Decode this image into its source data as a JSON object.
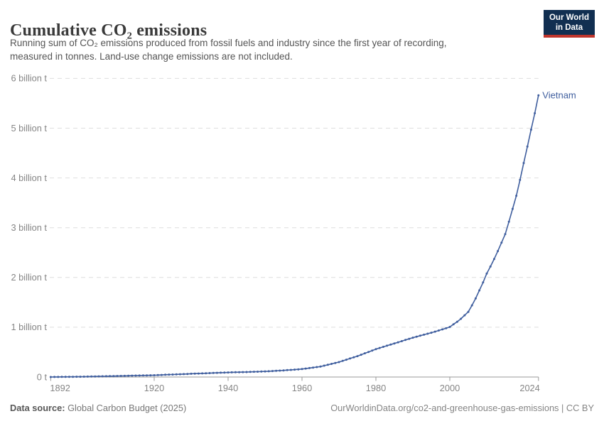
{
  "header": {
    "title": "Cumulative CO₂ emissions",
    "subtitle_line1": "Running sum of CO₂ emissions produced from fossil fuels and industry since the first year of recording,",
    "subtitle_line2": "measured in tonnes. Land-use change emissions are not included.",
    "logo_line1": "Our World",
    "logo_line2": "in Data"
  },
  "chart_data": {
    "type": "line",
    "title": "Cumulative CO₂ emissions",
    "entity_label": "Vietnam",
    "line_color": "#3f5e9e",
    "grid_color": "#dedede",
    "axis_color": "#999999",
    "grid": "horizontal-dashed",
    "legend_position": "end-of-line",
    "xlabel": "",
    "ylabel": "tonnes",
    "xlim": [
      1892,
      2024
    ],
    "ylim": [
      0,
      6
    ],
    "x_ticks": [
      {
        "year": 1892,
        "label": "1892"
      },
      {
        "year": 1920,
        "label": "1920"
      },
      {
        "year": 1940,
        "label": "1940"
      },
      {
        "year": 1960,
        "label": "1960"
      },
      {
        "year": 1980,
        "label": "1980"
      },
      {
        "year": 2000,
        "label": "2000"
      },
      {
        "year": 2024,
        "label": "2024"
      }
    ],
    "y_ticks": [
      {
        "value": 0,
        "label": "0 t"
      },
      {
        "value": 1,
        "label": "1 billion t"
      },
      {
        "value": 2,
        "label": "2 billion t"
      },
      {
        "value": 3,
        "label": "3 billion t"
      },
      {
        "value": 4,
        "label": "4 billion t"
      },
      {
        "value": 5,
        "label": "5 billion t"
      },
      {
        "value": 6,
        "label": "6 billion t"
      }
    ],
    "x": [
      1892,
      1893,
      1894,
      1895,
      1896,
      1897,
      1898,
      1899,
      1900,
      1901,
      1902,
      1903,
      1904,
      1905,
      1906,
      1907,
      1908,
      1909,
      1910,
      1911,
      1912,
      1913,
      1914,
      1915,
      1916,
      1917,
      1918,
      1919,
      1920,
      1921,
      1922,
      1923,
      1924,
      1925,
      1926,
      1927,
      1928,
      1929,
      1930,
      1931,
      1932,
      1933,
      1934,
      1935,
      1936,
      1937,
      1938,
      1939,
      1940,
      1941,
      1942,
      1943,
      1944,
      1945,
      1946,
      1947,
      1948,
      1949,
      1950,
      1951,
      1952,
      1953,
      1954,
      1955,
      1956,
      1957,
      1958,
      1959,
      1960,
      1961,
      1962,
      1963,
      1964,
      1965,
      1966,
      1967,
      1968,
      1969,
      1970,
      1971,
      1972,
      1973,
      1974,
      1975,
      1976,
      1977,
      1978,
      1979,
      1980,
      1981,
      1982,
      1983,
      1984,
      1985,
      1986,
      1987,
      1988,
      1989,
      1990,
      1991,
      1992,
      1993,
      1994,
      1995,
      1996,
      1997,
      1998,
      1999,
      2000,
      2001,
      2002,
      2003,
      2004,
      2005,
      2006,
      2007,
      2008,
      2009,
      2010,
      2011,
      2012,
      2013,
      2014,
      2015,
      2016,
      2017,
      2018,
      2019,
      2020,
      2021,
      2022,
      2023,
      2024
    ],
    "series": [
      {
        "name": "Vietnam",
        "unit": "billion t",
        "values": [
          0.0005,
          0.0012,
          0.0019,
          0.0026,
          0.0033,
          0.004,
          0.0046,
          0.0053,
          0.006,
          0.0074,
          0.0088,
          0.0102,
          0.0116,
          0.013,
          0.0144,
          0.0158,
          0.0172,
          0.0186,
          0.02,
          0.0216,
          0.0232,
          0.0248,
          0.0264,
          0.028,
          0.0296,
          0.0312,
          0.0328,
          0.0344,
          0.036,
          0.039,
          0.042,
          0.045,
          0.048,
          0.05,
          0.053,
          0.056,
          0.059,
          0.062,
          0.065,
          0.068,
          0.07,
          0.073,
          0.076,
          0.079,
          0.081,
          0.084,
          0.087,
          0.089,
          0.092,
          0.094,
          0.096,
          0.097,
          0.099,
          0.1,
          0.102,
          0.105,
          0.107,
          0.11,
          0.112,
          0.116,
          0.12,
          0.124,
          0.128,
          0.132,
          0.138,
          0.143,
          0.149,
          0.154,
          0.16,
          0.17,
          0.18,
          0.19,
          0.2,
          0.21,
          0.228,
          0.246,
          0.264,
          0.282,
          0.3,
          0.324,
          0.348,
          0.372,
          0.396,
          0.42,
          0.448,
          0.476,
          0.504,
          0.532,
          0.56,
          0.583,
          0.606,
          0.629,
          0.652,
          0.675,
          0.698,
          0.721,
          0.744,
          0.767,
          0.79,
          0.81,
          0.83,
          0.85,
          0.87,
          0.89,
          0.912,
          0.934,
          0.957,
          0.98,
          1.005,
          1.06,
          1.11,
          1.17,
          1.24,
          1.31,
          1.44,
          1.58,
          1.74,
          1.9,
          2.08,
          2.22,
          2.37,
          2.53,
          2.7,
          2.87,
          3.12,
          3.38,
          3.64,
          3.96,
          4.3,
          4.63,
          4.97,
          5.3,
          5.66
        ]
      }
    ]
  },
  "footer": {
    "datasource_label": "Data source:",
    "datasource_value": "Global Carbon Budget (2025)",
    "right_text": "OurWorldinData.org/co2-and-greenhouse-gas-emissions | CC BY"
  }
}
